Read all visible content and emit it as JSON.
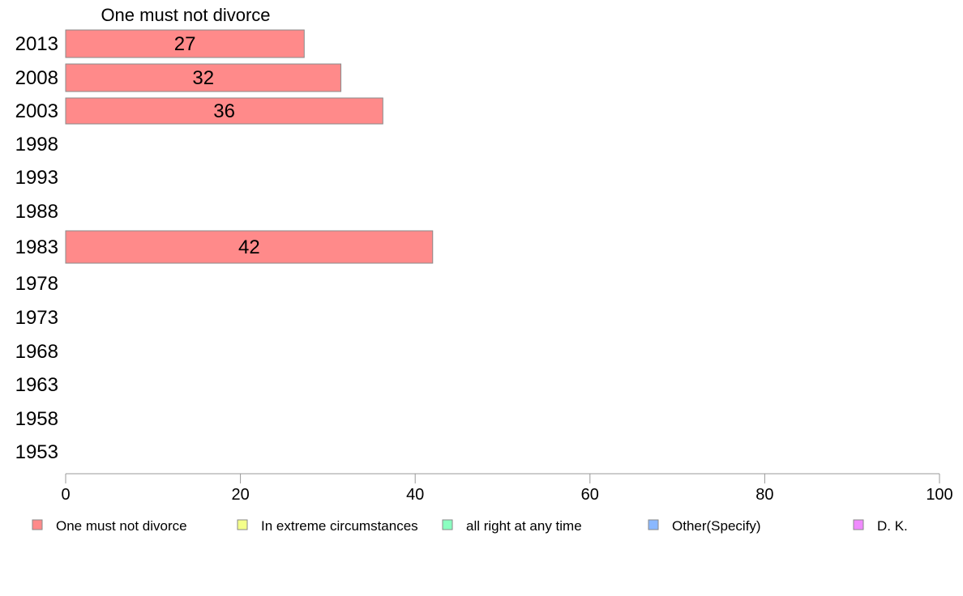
{
  "chart_data": {
    "type": "bar",
    "orientation": "horizontal",
    "title": "One must not divorce",
    "categories": [
      "2013",
      "2008",
      "2003",
      "1998",
      "1993",
      "1988",
      "1983",
      "1978",
      "1973",
      "1968",
      "1963",
      "1958",
      "1953"
    ],
    "series": [
      {
        "name": "One must not divorce",
        "color": "#ff8a8a",
        "values": [
          27.3,
          31.5,
          36.3,
          null,
          null,
          null,
          42.0,
          null,
          null,
          null,
          null,
          null,
          null
        ],
        "labels": [
          "27",
          "32",
          "36",
          "",
          "",
          "",
          "42",
          "",
          "",
          "",
          "",
          "",
          ""
        ]
      }
    ],
    "xlim": [
      0,
      100
    ],
    "xticks": [
      "0",
      "20",
      "40",
      "60",
      "80",
      "100"
    ],
    "grid": false,
    "legend": {
      "placement": "bottom",
      "entries": [
        {
          "label": "One must not divorce",
          "color": "#ff8a8a"
        },
        {
          "label": "In extreme circumstances",
          "color": "#f4ff8a"
        },
        {
          "label": "all right at any time",
          "color": "#8affc0"
        },
        {
          "label": "Other(Specify)",
          "color": "#8ab8ff"
        },
        {
          "label": "D. K.",
          "color": "#f08aff"
        }
      ]
    }
  }
}
